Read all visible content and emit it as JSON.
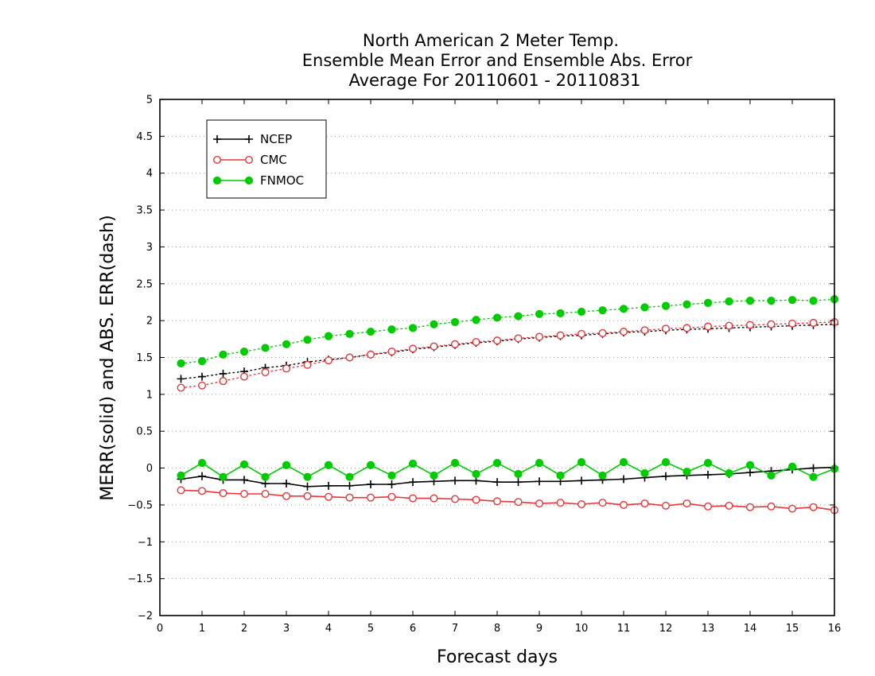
{
  "chart_data": {
    "type": "line",
    "title_lines": [
      "North American 2 Meter Temp.",
      "Ensemble Mean Error and Ensemble Abs. Error",
      "Average For 20110601 - 20110831"
    ],
    "xlabel": "Forecast days",
    "ylabel": "MERR(solid) and ABS. ERR(dash)",
    "xlim": [
      0,
      16
    ],
    "ylim": [
      -2,
      5
    ],
    "xticks": [
      0,
      1,
      2,
      3,
      4,
      5,
      6,
      7,
      8,
      9,
      10,
      11,
      12,
      13,
      14,
      15,
      16
    ],
    "yticks": [
      -2,
      -1.5,
      -1,
      -0.5,
      0,
      0.5,
      1,
      1.5,
      2,
      2.5,
      3,
      3.5,
      4,
      4.5,
      5
    ],
    "ytick_labels": [
      "−2",
      "−1.5",
      "−1",
      "−0.5",
      "0",
      "0.5",
      "1",
      "1.5",
      "2",
      "2.5",
      "3",
      "3.5",
      "4",
      "4.5",
      "5"
    ],
    "grid": "horizontal dotted",
    "legend_position": "top-left",
    "x": [
      0.5,
      1,
      1.5,
      2,
      2.5,
      3,
      3.5,
      4,
      4.5,
      5,
      5.5,
      6,
      6.5,
      7,
      7.5,
      8,
      8.5,
      9,
      9.5,
      10,
      10.5,
      11,
      11.5,
      12,
      12.5,
      13,
      13.5,
      14,
      14.5,
      15,
      15.5,
      16
    ],
    "series": [
      {
        "name": "NCEP",
        "color": "#000000",
        "marker": "plus",
        "mean_error": [
          -0.15,
          -0.11,
          -0.16,
          -0.16,
          -0.21,
          -0.21,
          -0.25,
          -0.24,
          -0.24,
          -0.22,
          -0.22,
          -0.19,
          -0.18,
          -0.17,
          -0.17,
          -0.19,
          -0.19,
          -0.18,
          -0.18,
          -0.17,
          -0.16,
          -0.15,
          -0.13,
          -0.11,
          -0.1,
          -0.09,
          -0.08,
          -0.06,
          -0.04,
          -0.02,
          0.0,
          0.01
        ],
        "abs_error": [
          1.21,
          1.24,
          1.28,
          1.31,
          1.36,
          1.39,
          1.44,
          1.47,
          1.5,
          1.54,
          1.57,
          1.61,
          1.64,
          1.67,
          1.7,
          1.72,
          1.75,
          1.77,
          1.79,
          1.8,
          1.82,
          1.84,
          1.85,
          1.87,
          1.88,
          1.89,
          1.9,
          1.91,
          1.92,
          1.93,
          1.94,
          1.95
        ]
      },
      {
        "name": "CMC",
        "color": "#e8363a",
        "marker": "open-circle",
        "mean_error": [
          -0.3,
          -0.31,
          -0.34,
          -0.35,
          -0.35,
          -0.38,
          -0.38,
          -0.39,
          -0.4,
          -0.4,
          -0.39,
          -0.41,
          -0.41,
          -0.42,
          -0.43,
          -0.45,
          -0.46,
          -0.48,
          -0.47,
          -0.49,
          -0.47,
          -0.5,
          -0.48,
          -0.51,
          -0.48,
          -0.52,
          -0.51,
          -0.53,
          -0.52,
          -0.55,
          -0.53,
          -0.57
        ],
        "abs_error": [
          1.09,
          1.12,
          1.18,
          1.24,
          1.3,
          1.35,
          1.4,
          1.46,
          1.5,
          1.54,
          1.58,
          1.62,
          1.65,
          1.68,
          1.71,
          1.73,
          1.76,
          1.78,
          1.8,
          1.82,
          1.83,
          1.85,
          1.87,
          1.89,
          1.9,
          1.92,
          1.93,
          1.94,
          1.95,
          1.96,
          1.97,
          1.98
        ]
      },
      {
        "name": "FNMOC",
        "color": "#00cc00",
        "marker": "filled-circle",
        "mean_error": [
          -0.1,
          0.07,
          -0.12,
          0.05,
          -0.12,
          0.04,
          -0.12,
          0.04,
          -0.12,
          0.04,
          -0.1,
          0.06,
          -0.1,
          0.07,
          -0.08,
          0.07,
          -0.08,
          0.07,
          -0.1,
          0.08,
          -0.1,
          0.08,
          -0.07,
          0.08,
          -0.05,
          0.07,
          -0.07,
          0.04,
          -0.1,
          0.02,
          -0.12,
          -0.01
        ],
        "abs_error": [
          1.42,
          1.45,
          1.54,
          1.58,
          1.63,
          1.68,
          1.74,
          1.79,
          1.82,
          1.85,
          1.88,
          1.9,
          1.95,
          1.98,
          2.01,
          2.04,
          2.06,
          2.09,
          2.1,
          2.12,
          2.14,
          2.16,
          2.18,
          2.2,
          2.22,
          2.24,
          2.26,
          2.27,
          2.27,
          2.28,
          2.27,
          2.29
        ]
      }
    ]
  }
}
